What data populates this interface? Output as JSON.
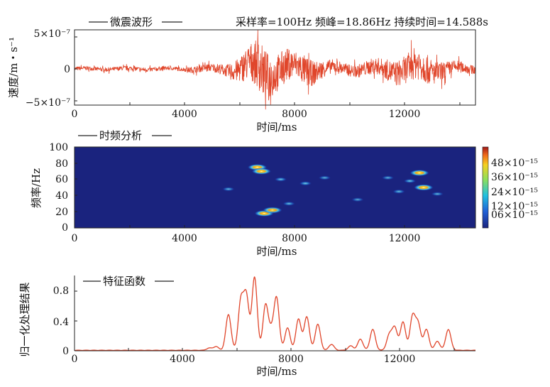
{
  "chart_data": [
    {
      "type": "line",
      "title": "微震波形",
      "header": "采样率=100Hz 频峰=18.86Hz 持续时间=14.588s",
      "xlabel": "时间/ms",
      "ylabel": "速度/m・s⁻¹",
      "xlim": [
        0,
        14588
      ],
      "ylim": [
        -6e-07,
        6e-07
      ],
      "xticks": [
        "0",
        "4000",
        "8000",
        "12000"
      ],
      "yticks": [
        "5×10⁻⁷",
        "0",
        "−5×10⁻⁷"
      ],
      "line_color": "#e0452a",
      "envelope": [
        {
          "t": 0,
          "a": 4e-08
        },
        {
          "t": 2000,
          "a": 4.5e-08
        },
        {
          "t": 4000,
          "a": 4e-08
        },
        {
          "t": 4200,
          "a": 6e-08
        },
        {
          "t": 5000,
          "a": 8e-08
        },
        {
          "t": 5500,
          "a": 1.2e-07
        },
        {
          "t": 5800,
          "a": 2e-07
        },
        {
          "t": 6200,
          "a": 3.2e-07
        },
        {
          "t": 6600,
          "a": 4.6e-07
        },
        {
          "t": 6800,
          "a": 5.3e-07
        },
        {
          "t": 7200,
          "a": 4.2e-07
        },
        {
          "t": 7600,
          "a": 3.6e-07
        },
        {
          "t": 8000,
          "a": 2.8e-07
        },
        {
          "t": 8400,
          "a": 3.2e-07
        },
        {
          "t": 8800,
          "a": 2.2e-07
        },
        {
          "t": 9200,
          "a": 1.5e-07
        },
        {
          "t": 10000,
          "a": 1.2e-07
        },
        {
          "t": 10600,
          "a": 1.5e-07
        },
        {
          "t": 11200,
          "a": 1.8e-07
        },
        {
          "t": 11600,
          "a": 2.5e-07
        },
        {
          "t": 12200,
          "a": 3e-07
        },
        {
          "t": 12600,
          "a": 3.5e-07
        },
        {
          "t": 13000,
          "a": 2.6e-07
        },
        {
          "t": 13600,
          "a": 1.5e-07
        },
        {
          "t": 14588,
          "a": 8e-08
        }
      ]
    },
    {
      "type": "heatmap",
      "title": "时频分析",
      "xlabel": "时间/ms",
      "ylabel": "频率/Hz",
      "xlim": [
        0,
        14588
      ],
      "ylim": [
        0,
        100
      ],
      "xticks": [
        "0",
        "4000",
        "8000",
        "12000"
      ],
      "yticks": [
        "100",
        "80",
        "60",
        "40",
        "20",
        "0"
      ],
      "colorbar_ticks": [
        "48×10⁻¹⁵",
        "36×10⁻¹⁵",
        "24×10⁻¹⁵",
        "12×10⁻¹⁵",
        "06×10⁻¹⁵"
      ],
      "colorbar_range": [
        0,
        55
      ],
      "background_color": "#1a237e",
      "hotspots": [
        {
          "t": 6650,
          "f": 75,
          "v": 50
        },
        {
          "t": 6800,
          "f": 70,
          "v": 38
        },
        {
          "t": 6900,
          "f": 18,
          "v": 52
        },
        {
          "t": 7200,
          "f": 22,
          "v": 30
        },
        {
          "t": 7500,
          "f": 60,
          "v": 18
        },
        {
          "t": 8400,
          "f": 55,
          "v": 20
        },
        {
          "t": 7800,
          "f": 30,
          "v": 16
        },
        {
          "t": 5600,
          "f": 48,
          "v": 14
        },
        {
          "t": 9100,
          "f": 62,
          "v": 12
        },
        {
          "t": 12550,
          "f": 68,
          "v": 48
        },
        {
          "t": 12700,
          "f": 50,
          "v": 36
        },
        {
          "t": 12200,
          "f": 58,
          "v": 20
        },
        {
          "t": 11800,
          "f": 45,
          "v": 16
        },
        {
          "t": 13200,
          "f": 42,
          "v": 14
        },
        {
          "t": 11400,
          "f": 62,
          "v": 12
        },
        {
          "t": 10300,
          "f": 35,
          "v": 10
        }
      ]
    },
    {
      "type": "line",
      "title": "特征函数",
      "xlabel": "时间/ms",
      "ylabel": "归一化处理结果",
      "xlim": [
        0,
        14588
      ],
      "ylim": [
        0,
        1
      ],
      "xticks": [
        "0",
        "4000",
        "8000",
        "12000"
      ],
      "yticks": [
        "0.8",
        "0.4",
        "0"
      ],
      "line_color": "#e0452a",
      "peaks": [
        {
          "t": 4900,
          "y": 0.03
        },
        {
          "t": 5150,
          "y": 0.05
        },
        {
          "t": 5600,
          "y": 0.48
        },
        {
          "t": 6050,
          "y": 0.65
        },
        {
          "t": 6250,
          "y": 0.72
        },
        {
          "t": 6550,
          "y": 0.98
        },
        {
          "t": 6950,
          "y": 0.6
        },
        {
          "t": 7150,
          "y": 0.22
        },
        {
          "t": 7350,
          "y": 0.7
        },
        {
          "t": 7750,
          "y": 0.3
        },
        {
          "t": 8150,
          "y": 0.42
        },
        {
          "t": 8450,
          "y": 0.45
        },
        {
          "t": 8850,
          "y": 0.35
        },
        {
          "t": 9350,
          "y": 0.08
        },
        {
          "t": 10050,
          "y": 0.06
        },
        {
          "t": 10400,
          "y": 0.15
        },
        {
          "t": 10850,
          "y": 0.28
        },
        {
          "t": 11450,
          "y": 0.2
        },
        {
          "t": 11650,
          "y": 0.3
        },
        {
          "t": 11950,
          "y": 0.38
        },
        {
          "t": 12300,
          "y": 0.45
        },
        {
          "t": 12500,
          "y": 0.35
        },
        {
          "t": 12800,
          "y": 0.28
        },
        {
          "t": 13200,
          "y": 0.12
        },
        {
          "t": 13600,
          "y": 0.28
        }
      ]
    }
  ]
}
